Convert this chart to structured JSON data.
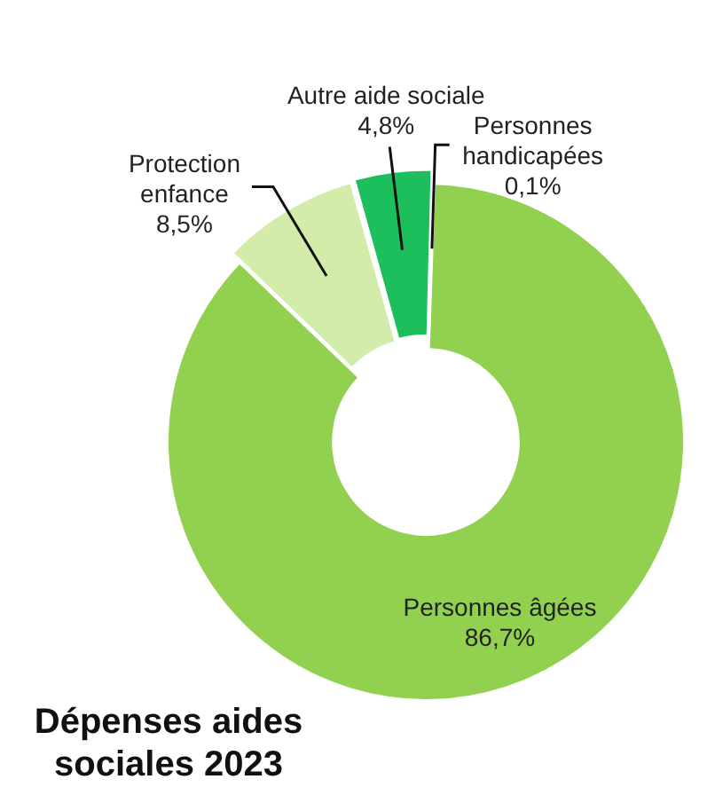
{
  "chart_data": {
    "type": "donut",
    "title": "Dépenses aides sociales 2023",
    "categories": [
      "Personnes âgées",
      "Protection enfance",
      "Autre aide sociale",
      "Personnes handicapées"
    ],
    "values": [
      86.7,
      8.5,
      4.8,
      0.1
    ],
    "value_labels": [
      "86,7%",
      "8,5%",
      "4,8%",
      "0,1%"
    ],
    "colors": [
      "#92d050",
      "#d3ecaa",
      "#1dbf5c",
      "#2f9e48"
    ],
    "legend": false
  }
}
